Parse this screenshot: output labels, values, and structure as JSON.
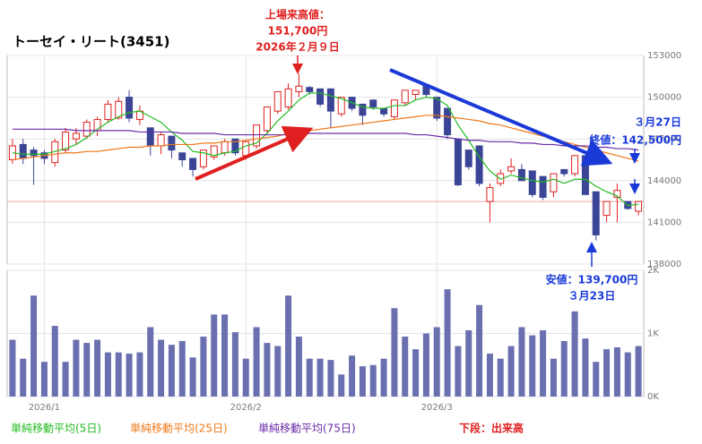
{
  "chart_data": [
    {
      "type": "candlestick",
      "title": "トーセイ・リート(3451)",
      "categories": [
        null,
        null,
        null,
        "2026/1",
        null,
        null,
        null,
        null,
        null,
        null,
        null,
        null,
        null,
        null,
        null,
        null,
        null,
        null,
        null,
        null,
        null,
        null,
        "2026/2",
        null,
        null,
        null,
        null,
        null,
        null,
        null,
        null,
        null,
        null,
        null,
        null,
        null,
        null,
        null,
        null,
        null,
        "2026/3",
        null,
        null,
        null,
        null,
        null,
        null,
        null,
        null,
        null,
        null,
        null,
        null,
        null,
        null,
        null,
        null,
        null,
        null,
        null
      ],
      "open": [
        145500,
        146600,
        146200,
        146000,
        145300,
        146200,
        147000,
        147200,
        147600,
        148400,
        148500,
        150000,
        148400,
        147800,
        146500,
        147200,
        146000,
        145600,
        145000,
        145700,
        146000,
        147000,
        145800,
        146500,
        147600,
        149000,
        149300,
        150400,
        150700,
        150600,
        150600,
        148800,
        150000,
        149500,
        149800,
        149200,
        148600,
        149600,
        150200,
        150900,
        150000,
        149200,
        147000,
        146200,
        146500,
        142500,
        143800,
        144700,
        144800,
        144700,
        144300,
        143200,
        144800,
        144500,
        145800,
        143200,
        141500,
        142800,
        142500,
        141800
      ],
      "high": [
        147000,
        147000,
        146400,
        146200,
        147000,
        147800,
        147800,
        148400,
        148600,
        149800,
        150000,
        150500,
        149400,
        147800,
        147500,
        147200,
        146000,
        145600,
        146200,
        146500,
        147000,
        147000,
        146800,
        148000,
        149300,
        150400,
        151000,
        151700,
        150800,
        150600,
        150600,
        150000,
        150000,
        149500,
        149800,
        149200,
        149800,
        150500,
        150500,
        151000,
        150000,
        149200,
        147000,
        146200,
        146500,
        143800,
        144800,
        145600,
        145200,
        144700,
        144300,
        144500,
        144800,
        145800,
        145800,
        143200,
        142500,
        143800,
        142500,
        142500
      ],
      "low": [
        145200,
        145200,
        143700,
        145200,
        145000,
        146000,
        146600,
        147000,
        147200,
        148200,
        148400,
        148200,
        148000,
        145800,
        145900,
        145600,
        145000,
        144300,
        144800,
        145500,
        145800,
        145800,
        145500,
        146300,
        147400,
        148800,
        149100,
        150000,
        150200,
        149300,
        147800,
        148600,
        149000,
        148000,
        149100,
        148600,
        148400,
        149400,
        149800,
        150000,
        148300,
        147000,
        143600,
        144800,
        143600,
        141000,
        143600,
        144500,
        144000,
        142800,
        142600,
        142800,
        144300,
        144300,
        143000,
        139700,
        141000,
        141000,
        141900,
        141500
      ],
      "close": [
        146500,
        145600,
        145800,
        145600,
        146800,
        147500,
        147400,
        148200,
        148400,
        149500,
        149700,
        148500,
        149000,
        146500,
        147300,
        146200,
        145500,
        144800,
        146200,
        146500,
        146800,
        146000,
        146800,
        148000,
        149300,
        150400,
        150600,
        150800,
        150400,
        149500,
        149000,
        150000,
        149200,
        148700,
        149300,
        148800,
        149800,
        150500,
        150500,
        150200,
        148500,
        147300,
        143700,
        145000,
        143800,
        143500,
        144500,
        145000,
        144000,
        143000,
        142800,
        144500,
        144500,
        145800,
        143000,
        140100,
        142500,
        143300,
        142000,
        142500
      ],
      "up_color": "#e02020",
      "down_color": "#3b4596",
      "moving_averages": [
        {
          "name": "単純移動平均(5日)",
          "color": "#22bb22",
          "values": [
            146000,
            145900,
            145900,
            145900,
            146100,
            146300,
            146600,
            147100,
            147700,
            148200,
            148600,
            148900,
            149000,
            148600,
            148200,
            147500,
            146900,
            146100,
            146000,
            145800,
            146000,
            146100,
            146500,
            146700,
            147400,
            148300,
            149000,
            149800,
            150300,
            150300,
            150100,
            149900,
            149600,
            149300,
            149200,
            149200,
            149400,
            149400,
            149800,
            150000,
            149900,
            149400,
            148000,
            146900,
            145700,
            144700,
            144100,
            144400,
            144200,
            144000,
            143900,
            144100,
            143800,
            144100,
            144100,
            143600,
            143200,
            142900,
            142200,
            142300
          ]
        },
        {
          "name": "単純移動平均(25日)",
          "color": "#f07818",
          "values": [
            145500,
            145600,
            145700,
            145800,
            145900,
            146000,
            146000,
            146100,
            146100,
            146200,
            146300,
            146400,
            146400,
            146500,
            146500,
            146600,
            146600,
            146600,
            146700,
            146700,
            146800,
            146800,
            146900,
            147000,
            147100,
            147200,
            147400,
            147500,
            147600,
            147700,
            147800,
            147900,
            148000,
            148100,
            148200,
            148300,
            148400,
            148500,
            148600,
            148700,
            148700,
            148600,
            148500,
            148400,
            148300,
            148100,
            148000,
            147800,
            147600,
            147400,
            147200,
            147000,
            146800,
            146600,
            146400,
            146200,
            146000,
            145800,
            145600,
            145400
          ]
        },
        {
          "name": "単純移動平均(75日)",
          "color": "#6a2aa8",
          "values": [
            147700,
            147700,
            147700,
            147700,
            147700,
            147700,
            147600,
            147600,
            147600,
            147600,
            147600,
            147600,
            147500,
            147500,
            147500,
            147500,
            147400,
            147400,
            147400,
            147400,
            147300,
            147300,
            147300,
            147300,
            147300,
            147300,
            147300,
            147300,
            147400,
            147400,
            147400,
            147400,
            147400,
            147400,
            147400,
            147400,
            147400,
            147400,
            147300,
            147300,
            147200,
            147100,
            147000,
            146900,
            146900,
            146800,
            146800,
            146800,
            146700,
            146700,
            146600,
            146600,
            146500,
            146500,
            146500,
            146400,
            146400,
            146300,
            146300,
            146200
          ]
        }
      ],
      "ylim": [
        138000,
        153000
      ],
      "yticks": [
        138000,
        141000,
        144000,
        147000,
        150000,
        153000
      ],
      "grid": true,
      "annotations": [
        "上場来高値：",
        "151,700円",
        "2026年２月９日",
        "３月27日",
        "終値：142,500円",
        "安値：139,700円",
        "３月23日"
      ]
    },
    {
      "type": "bar",
      "label": "下段：出来高",
      "color": "#6a6fb0",
      "values": [
        900,
        600,
        1600,
        550,
        1120,
        550,
        900,
        850,
        900,
        700,
        700,
        680,
        700,
        1100,
        900,
        820,
        880,
        620,
        950,
        1300,
        1300,
        1020,
        600,
        1100,
        850,
        800,
        1600,
        950,
        600,
        600,
        580,
        350,
        650,
        480,
        500,
        600,
        1400,
        950,
        750,
        1000,
        1100,
        1700,
        800,
        1050,
        1450,
        680,
        600,
        800,
        1100,
        970,
        1050,
        600,
        880,
        1350,
        920,
        550,
        750,
        780,
        700,
        800
      ],
      "ylim": [
        0,
        2000
      ],
      "yticks": [
        {
          "value": 0,
          "label": "0K"
        },
        {
          "value": 1000,
          "label": "1K"
        },
        {
          "value": 2000,
          "label": "2K"
        }
      ]
    }
  ]
}
